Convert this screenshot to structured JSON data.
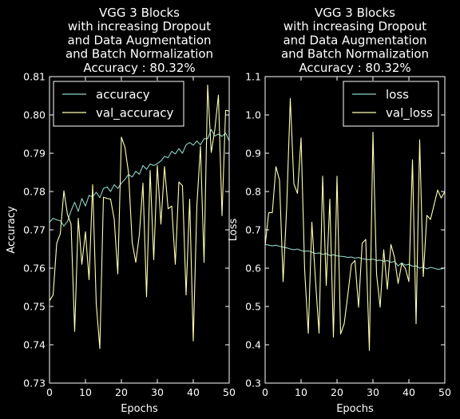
{
  "colors": {
    "background": "#000000",
    "axes": "#ffffff",
    "series_1": "#8dd3c7",
    "series_2": "#ffffb3"
  },
  "chart_data": [
    {
      "type": "line",
      "title": [
        "VGG 3 Blocks",
        "with increasing Dropout",
        "and Data Augmentation",
        "and Batch Normalization",
        "Accuracy : 80.32%"
      ],
      "xlabel": "Epochs",
      "ylabel": "Accuracy",
      "xlim": [
        0,
        50
      ],
      "ylim": [
        0.73,
        0.81
      ],
      "xticks": [
        0,
        10,
        20,
        30,
        40,
        50
      ],
      "xtick_labels": [
        "0",
        "10",
        "20",
        "30",
        "40",
        "50"
      ],
      "yticks": [
        0.73,
        0.74,
        0.75,
        0.76,
        0.77,
        0.78,
        0.79,
        0.8,
        0.81
      ],
      "ytick_labels": [
        "0.73",
        "0.74",
        "0.75",
        "0.76",
        "0.77",
        "0.78",
        "0.79",
        "0.80",
        "0.81"
      ],
      "legend_position": "upper-left",
      "grid": false,
      "series": [
        {
          "name": "accuracy",
          "color": "#8dd3c7",
          "values": [
            0.772,
            0.773,
            0.7726,
            0.7724,
            0.771,
            0.7722,
            0.775,
            0.7772,
            0.7748,
            0.7782,
            0.7762,
            0.779,
            0.7786,
            0.7798,
            0.7784,
            0.7808,
            0.7812,
            0.78,
            0.7818,
            0.7808,
            0.7822,
            0.7832,
            0.7845,
            0.7838,
            0.7853,
            0.7845,
            0.7868,
            0.7858,
            0.7872,
            0.7868,
            0.7873,
            0.788,
            0.7892,
            0.7888,
            0.7905,
            0.7898,
            0.7912,
            0.79,
            0.7922,
            0.7928,
            0.7921,
            0.7932,
            0.7922,
            0.7938,
            0.7938,
            0.7962,
            0.7945,
            0.795,
            0.7944,
            0.7953,
            0.7932
          ]
        },
        {
          "name": "val_accuracy",
          "color": "#ffffb3",
          "values": [
            0.7515,
            0.753,
            0.7665,
            0.769,
            0.7802,
            0.774,
            0.7715,
            0.7435,
            0.773,
            0.761,
            0.7695,
            0.757,
            0.7818,
            0.7508,
            0.739,
            0.7785,
            0.7782,
            0.778,
            0.7728,
            0.7585,
            0.7942,
            0.7915,
            0.7848,
            0.7668,
            0.7615,
            0.7688,
            0.7822,
            0.7525,
            0.7855,
            0.7622,
            0.7868,
            0.7715,
            0.7865,
            0.7755,
            0.7762,
            0.761,
            0.7825,
            0.7815,
            0.753,
            0.778,
            0.741,
            0.7762,
            0.7918,
            0.7615,
            0.8078,
            0.7902,
            0.7962,
            0.8052,
            0.7737,
            0.8012,
            0.801
          ]
        }
      ]
    },
    {
      "type": "line",
      "title": [
        "VGG 3 Blocks",
        "with increasing Dropout",
        "and Data Augmentation",
        "and Batch Normalization",
        "Accuracy : 80.32%"
      ],
      "xlabel": "Epochs",
      "ylabel": "Loss",
      "xlim": [
        0,
        50
      ],
      "ylim": [
        0.3,
        1.1
      ],
      "xticks": [
        0,
        10,
        20,
        30,
        40,
        50
      ],
      "xtick_labels": [
        "0",
        "10",
        "20",
        "30",
        "40",
        "50"
      ],
      "yticks": [
        0.3,
        0.4,
        0.5,
        0.6,
        0.7,
        0.8,
        0.9,
        1.0,
        1.1
      ],
      "ytick_labels": [
        "0.3",
        "0.4",
        "0.5",
        "0.6",
        "0.7",
        "0.8",
        "0.9",
        "1.0",
        "1.1"
      ],
      "legend_position": "upper-right",
      "grid": false,
      "series": [
        {
          "name": "loss",
          "color": "#8dd3c7",
          "values": [
            0.662,
            0.66,
            0.658,
            0.66,
            0.657,
            0.655,
            0.653,
            0.65,
            0.648,
            0.65,
            0.646,
            0.644,
            0.645,
            0.642,
            0.638,
            0.64,
            0.636,
            0.638,
            0.633,
            0.635,
            0.632,
            0.631,
            0.63,
            0.628,
            0.629,
            0.626,
            0.628,
            0.625,
            0.623,
            0.622,
            0.624,
            0.62,
            0.621,
            0.618,
            0.62,
            0.615,
            0.618,
            0.606,
            0.614,
            0.608,
            0.61,
            0.605,
            0.606,
            0.6,
            0.603,
            0.598,
            0.602,
            0.6,
            0.597,
            0.598,
            0.601
          ]
        },
        {
          "name": "val_loss",
          "color": "#ffffb3",
          "values": [
            0.66,
            0.745,
            0.745,
            0.865,
            0.83,
            0.565,
            0.76,
            1.043,
            0.82,
            0.795,
            0.94,
            0.595,
            0.43,
            0.72,
            0.57,
            0.43,
            0.84,
            0.555,
            0.78,
            0.42,
            0.84,
            0.428,
            0.455,
            0.53,
            0.61,
            0.62,
            0.498,
            0.665,
            0.675,
            0.385,
            0.955,
            0.585,
            0.498,
            0.648,
            0.545,
            0.662,
            0.628,
            0.56,
            0.612,
            0.6,
            0.565,
            0.883,
            0.455,
            0.935,
            0.578,
            0.738,
            0.727,
            0.765,
            0.804,
            0.783,
            0.8
          ]
        }
      ]
    }
  ]
}
